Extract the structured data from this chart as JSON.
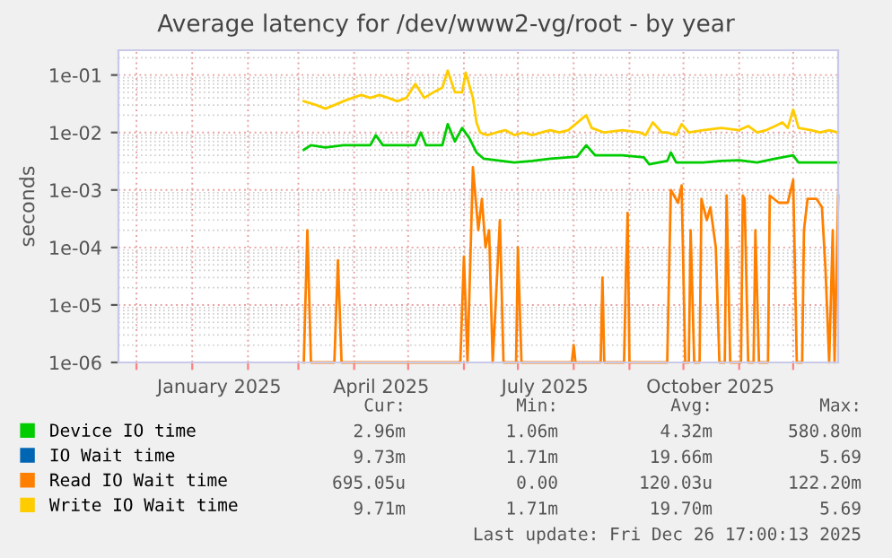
{
  "chart_data": {
    "type": "line",
    "title": "Average latency for /dev/www2-vg/root - by year",
    "ylabel": "seconds",
    "log": "y",
    "grid": true,
    "legend": "bottom",
    "marker": "none",
    "line_style": "solid",
    "xlim": [
      "2024-11-21",
      "2025-12-26"
    ],
    "xticks": [
      {
        "value": "2024-12-01",
        "label": null
      },
      {
        "value": "2025-01-01",
        "label": null
      },
      {
        "value": "2025-01-16",
        "label": "January 2025"
      },
      {
        "value": "2025-02-01",
        "label": null
      },
      {
        "value": "2025-03-01",
        "label": null
      },
      {
        "value": "2025-04-01",
        "label": null
      },
      {
        "value": "2025-04-16",
        "label": "April 2025"
      },
      {
        "value": "2025-05-01",
        "label": null
      },
      {
        "value": "2025-06-01",
        "label": null
      },
      {
        "value": "2025-07-01",
        "label": null
      },
      {
        "value": "2025-07-16",
        "label": "July 2025"
      },
      {
        "value": "2025-08-01",
        "label": null
      },
      {
        "value": "2025-09-01",
        "label": null
      },
      {
        "value": "2025-10-01",
        "label": null
      },
      {
        "value": "2025-10-16",
        "label": "October 2025"
      },
      {
        "value": "2025-11-01",
        "label": null
      },
      {
        "value": "2025-12-01",
        "label": null
      }
    ],
    "ylim": [
      1e-06,
      0.27
    ],
    "yticks": [
      {
        "value": 1e-06,
        "label": "1e-06"
      },
      {
        "value": 1e-05,
        "label": "1e-05"
      },
      {
        "value": 0.0001,
        "label": "1e-04"
      },
      {
        "value": 0.001,
        "label": "1e-03"
      },
      {
        "value": 0.01,
        "label": "1e-02"
      },
      {
        "value": 0.1,
        "label": "1e-01"
      }
    ],
    "x": [
      "2025-03-04",
      "2025-03-11",
      "2025-03-16",
      "2025-03-21",
      "2025-03-26",
      "2025-03-31",
      "2025-04-05",
      "2025-04-10",
      "2025-04-15",
      "2025-04-20",
      "2025-04-25",
      "2025-04-30",
      "2025-05-05",
      "2025-05-10",
      "2025-05-15",
      "2025-05-20",
      "2025-05-23",
      "2025-05-27",
      "2025-05-31",
      "2025-06-02",
      "2025-06-06",
      "2025-06-08",
      "2025-06-10",
      "2025-06-14",
      "2025-06-19",
      "2025-06-24",
      "2025-06-29",
      "2025-07-04",
      "2025-07-09",
      "2025-07-14",
      "2025-07-19",
      "2025-07-24",
      "2025-07-29",
      "2025-08-08",
      "2025-08-11",
      "2025-08-18",
      "2025-08-28",
      "2025-09-07",
      "2025-09-10",
      "2025-09-14",
      "2025-09-19",
      "2025-09-22",
      "2025-09-27",
      "2025-09-30",
      "2025-10-04",
      "2025-10-12",
      "2025-10-22",
      "2025-11-01",
      "2025-11-06",
      "2025-11-11",
      "2025-11-16",
      "2025-11-21",
      "2025-11-25",
      "2025-11-28",
      "2025-12-01",
      "2025-12-04",
      "2025-12-11",
      "2025-12-16",
      "2025-12-21",
      "2025-12-26"
    ],
    "series": [
      {
        "name": "Device IO time",
        "color": "#00cc00",
        "x": [
          "2025-03-04",
          "2025-03-08",
          "2025-03-16",
          "2025-03-26",
          "2025-04-05",
          "2025-04-10",
          "2025-04-13",
          "2025-04-17",
          "2025-04-25",
          "2025-05-05",
          "2025-05-08",
          "2025-05-11",
          "2025-05-20",
          "2025-05-23",
          "2025-05-27",
          "2025-05-31",
          "2025-06-04",
          "2025-06-08",
          "2025-06-12",
          "2025-06-19",
          "2025-06-29",
          "2025-07-09",
          "2025-07-19",
          "2025-08-03",
          "2025-08-08",
          "2025-08-13",
          "2025-08-28",
          "2025-09-09",
          "2025-09-12",
          "2025-09-22",
          "2025-09-24",
          "2025-09-27",
          "2025-10-12",
          "2025-10-22",
          "2025-11-01",
          "2025-11-11",
          "2025-11-21",
          "2025-12-01",
          "2025-12-04",
          "2025-12-16",
          "2025-12-26"
        ],
        "values": [
          0.005,
          0.006,
          0.0055,
          0.006,
          0.006,
          0.006,
          0.009,
          0.006,
          0.006,
          0.006,
          0.01,
          0.006,
          0.006,
          0.014,
          0.007,
          0.012,
          0.008,
          0.0045,
          0.0035,
          0.0033,
          0.003,
          0.0032,
          0.0035,
          0.0038,
          0.006,
          0.004,
          0.004,
          0.0037,
          0.0028,
          0.0032,
          0.0045,
          0.003,
          0.003,
          0.0032,
          0.0033,
          0.003,
          0.0035,
          0.004,
          0.003,
          0.003,
          0.003
        ]
      },
      {
        "name": "IO Wait time",
        "color": "#0066b3",
        "values": [
          null,
          null,
          null,
          null,
          null,
          null,
          null,
          null,
          null,
          null,
          null,
          null,
          null,
          null,
          null,
          null,
          null,
          null,
          null,
          null,
          null,
          null,
          null,
          null,
          null,
          null,
          null,
          null,
          null,
          null,
          null,
          null,
          null,
          null,
          null,
          null,
          null,
          null,
          null,
          null,
          null,
          null,
          null,
          null,
          null,
          null,
          null,
          null,
          null,
          null,
          null,
          null,
          null,
          null,
          null,
          null,
          null,
          null,
          null,
          null
        ]
      },
      {
        "name": "Read IO Wait time",
        "color": "#ff8000",
        "x": [
          "2025-03-04",
          "2025-03-06",
          "2025-03-08",
          "2025-03-21",
          "2025-03-23",
          "2025-03-25",
          "2025-05-30",
          "2025-06-01",
          "2025-06-03",
          "2025-06-06",
          "2025-06-09",
          "2025-06-11",
          "2025-06-13",
          "2025-06-15",
          "2025-06-17",
          "2025-06-21",
          "2025-06-23",
          "2025-06-30",
          "2025-07-01",
          "2025-07-03",
          "2025-07-31",
          "2025-08-01",
          "2025-08-02",
          "2025-08-16",
          "2025-08-17",
          "2025-08-18",
          "2025-08-29",
          "2025-08-30",
          "2025-08-31",
          "2025-09-01",
          "2025-09-22",
          "2025-09-24",
          "2025-09-28",
          "2025-09-30",
          "2025-10-02",
          "2025-10-04",
          "2025-10-05",
          "2025-10-07",
          "2025-10-10",
          "2025-10-11",
          "2025-10-14",
          "2025-10-16",
          "2025-10-19",
          "2025-10-21",
          "2025-10-24",
          "2025-10-25",
          "2025-10-27",
          "2025-11-02",
          "2025-11-03",
          "2025-11-04",
          "2025-11-06",
          "2025-11-09",
          "2025-11-10",
          "2025-11-12",
          "2025-11-17",
          "2025-11-18",
          "2025-11-23",
          "2025-11-28",
          "2025-12-01",
          "2025-12-03",
          "2025-12-06",
          "2025-12-07",
          "2025-12-09",
          "2025-12-14",
          "2025-12-17",
          "2025-12-19",
          "2025-12-21",
          "2025-12-23",
          "2025-12-24",
          "2025-12-26"
        ],
        "values": [
          1e-06,
          0.0002,
          1e-06,
          1e-06,
          6e-05,
          1e-06,
          1e-06,
          7e-05,
          1e-06,
          0.0025,
          0.0002,
          0.0007,
          0.0001,
          0.0002,
          1e-06,
          0.0003,
          1e-06,
          1e-06,
          0.0001,
          1e-06,
          1e-06,
          2e-06,
          1e-06,
          1e-06,
          3e-05,
          1e-06,
          1e-06,
          3e-05,
          0.0004,
          1e-06,
          1e-06,
          0.001,
          0.0006,
          0.0012,
          1e-06,
          1e-06,
          0.0002,
          1e-06,
          1e-06,
          0.0007,
          0.0003,
          0.0005,
          0.0001,
          1e-06,
          1e-06,
          0.0008,
          1e-06,
          1e-06,
          0.0008,
          0.0007,
          1e-06,
          1e-06,
          0.0002,
          1e-06,
          1e-06,
          0.0008,
          0.0006,
          0.0006,
          0.0015,
          1e-06,
          1e-06,
          0.0002,
          0.0007,
          0.0007,
          0.0005,
          4e-05,
          1e-06,
          0.0002,
          1e-06,
          0.0008
        ]
      },
      {
        "name": "Write IO Wait time",
        "color": "#ffcc00",
        "values": [
          0.035,
          0.03,
          0.026,
          0.03,
          0.035,
          0.04,
          0.045,
          0.04,
          0.045,
          0.04,
          0.035,
          0.04,
          0.07,
          0.04,
          0.05,
          0.06,
          0.12,
          0.05,
          0.05,
          0.11,
          0.04,
          0.015,
          0.01,
          0.009,
          0.01,
          0.011,
          0.009,
          0.01,
          0.009,
          0.01,
          0.011,
          0.01,
          0.011,
          0.02,
          0.012,
          0.01,
          0.011,
          0.01,
          0.009,
          0.015,
          0.01,
          0.01,
          0.009,
          0.014,
          0.01,
          0.011,
          0.012,
          0.011,
          0.013,
          0.01,
          0.011,
          0.013,
          0.015,
          0.012,
          0.025,
          0.012,
          0.011,
          0.01,
          0.011,
          0.01
        ]
      }
    ],
    "annotations": [
      "Cur:",
      "Min:",
      "Avg:",
      "Max:",
      "2.96m",
      "1.06m",
      "4.32m",
      "580.80m",
      "9.73m",
      "1.71m",
      "19.66m",
      "5.69",
      "695.05u",
      "0.00",
      "120.03u",
      "122.20m",
      "9.71m",
      "1.71m",
      "19.70m",
      "5.69",
      "Last update: Fri Dec 26 17:00:13 2025"
    ]
  }
}
